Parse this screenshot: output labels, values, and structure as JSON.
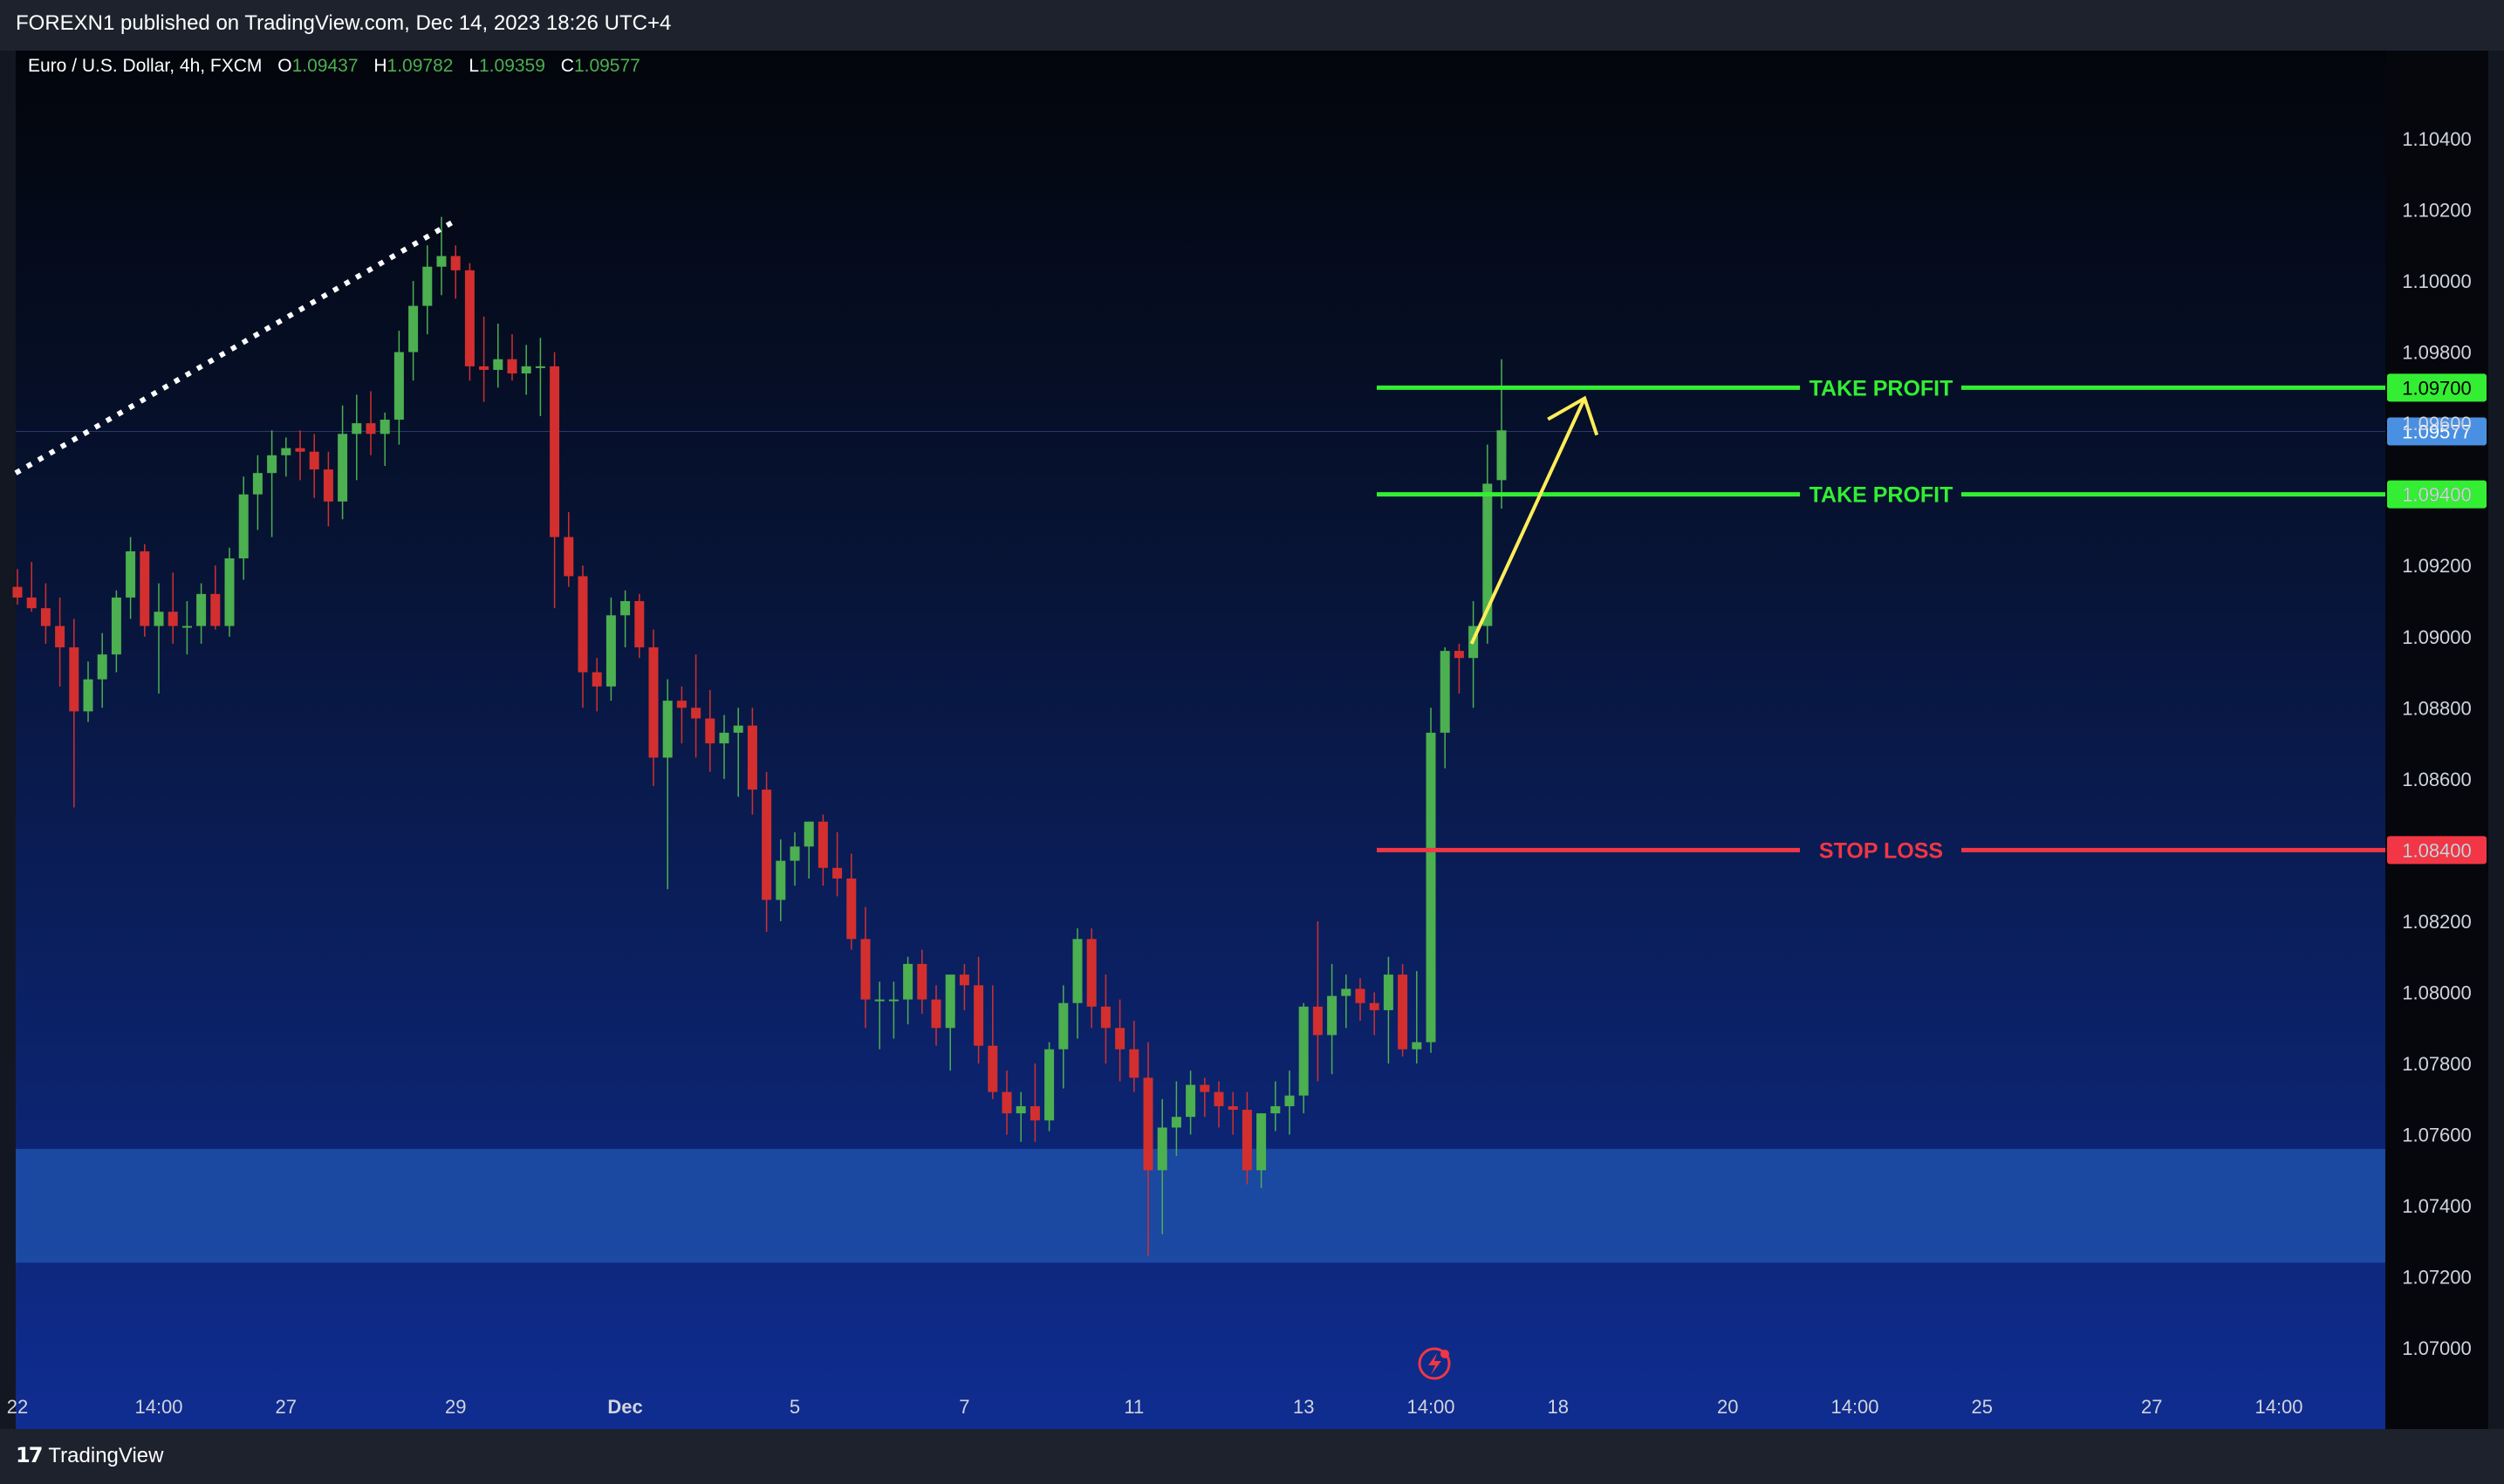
{
  "header": {
    "published": "FOREXN1 published on TradingView.com, Dec 14, 2023 18:26 UTC+4"
  },
  "legend": {
    "symbol": "Euro / U.S. Dollar, 4h, FXCM",
    "o_label": "O",
    "open": "1.09437",
    "h_label": "H",
    "high": "1.09782",
    "l_label": "L",
    "low": "1.09359",
    "c_label": "C",
    "close": "1.09577"
  },
  "footer": {
    "brand": "TradingView",
    "logo_glyph": "17"
  },
  "colors": {
    "up": "#4caf50",
    "down": "#d32f2f",
    "take_profit": "#33ee33",
    "stop_loss": "#f23645",
    "last_price": "#4a90e2",
    "arrow": "#ffee58",
    "zone": "#1e4fa8"
  },
  "chart_data": {
    "type": "candlestick",
    "symbol": "EURUSD",
    "timeframe": "4h",
    "ylim": [
      1.069,
      1.1052
    ],
    "y_ticks": [
      "1.10400",
      "1.10200",
      "1.10000",
      "1.09800",
      "1.09600",
      "1.09400",
      "1.09200",
      "1.09000",
      "1.08800",
      "1.08600",
      "1.08400",
      "1.08200",
      "1.08000",
      "1.07800",
      "1.07600",
      "1.07400",
      "1.07200",
      "1.07000"
    ],
    "x_ticks": [
      {
        "label": "22",
        "slot": 0
      },
      {
        "label": "14:00",
        "slot": 10
      },
      {
        "label": "27",
        "slot": 19
      },
      {
        "label": "29",
        "slot": 31
      },
      {
        "label": "Dec",
        "slot": 43
      },
      {
        "label": "5",
        "slot": 55
      },
      {
        "label": "7",
        "slot": 67
      },
      {
        "label": "11",
        "slot": 79
      },
      {
        "label": "13",
        "slot": 91
      },
      {
        "label": "14:00",
        "slot": 100
      },
      {
        "label": "18",
        "slot": 109
      },
      {
        "label": "20",
        "slot": 121
      },
      {
        "label": "14:00",
        "slot": 130
      },
      {
        "label": "25",
        "slot": 139
      },
      {
        "label": "27",
        "slot": 151
      },
      {
        "label": "14:00",
        "slot": 160
      }
    ],
    "candles": [
      [
        1.0914,
        1.0919,
        1.0909,
        1.0911
      ],
      [
        1.0911,
        1.0921,
        1.0907,
        1.0908
      ],
      [
        1.0908,
        1.0915,
        1.0898,
        1.0903
      ],
      [
        1.0903,
        1.0911,
        1.0886,
        1.0897
      ],
      [
        1.0897,
        1.0905,
        1.0852,
        1.0879
      ],
      [
        1.0879,
        1.0893,
        1.0876,
        1.0888
      ],
      [
        1.0888,
        1.0901,
        1.088,
        1.0895
      ],
      [
        1.0895,
        1.0913,
        1.089,
        1.0911
      ],
      [
        1.0911,
        1.0928,
        1.0905,
        1.0924
      ],
      [
        1.0924,
        1.0926,
        1.09,
        1.0903
      ],
      [
        1.0903,
        1.0915,
        1.0884,
        1.0907
      ],
      [
        1.0907,
        1.0918,
        1.0898,
        1.0903
      ],
      [
        1.0903,
        1.091,
        1.0895,
        1.0903
      ],
      [
        1.0903,
        1.0915,
        1.0898,
        1.0912
      ],
      [
        1.0912,
        1.092,
        1.0902,
        1.0903
      ],
      [
        1.0903,
        1.0925,
        1.09,
        1.0922
      ],
      [
        1.0922,
        1.0945,
        1.0916,
        1.094
      ],
      [
        1.094,
        1.0951,
        1.093,
        1.0946
      ],
      [
        1.0946,
        1.0958,
        1.0928,
        1.0951
      ],
      [
        1.0951,
        1.0956,
        1.0945,
        1.0953
      ],
      [
        1.0953,
        1.0958,
        1.0944,
        1.0952
      ],
      [
        1.0952,
        1.0957,
        1.0939,
        1.0947
      ],
      [
        1.0947,
        1.0952,
        1.0931,
        1.0938
      ],
      [
        1.0938,
        1.0965,
        1.0933,
        1.0957
      ],
      [
        1.0957,
        1.0968,
        1.0944,
        1.096
      ],
      [
        1.096,
        1.0969,
        1.0951,
        1.0957
      ],
      [
        1.0957,
        1.0963,
        1.0948,
        1.0961
      ],
      [
        1.0961,
        1.0986,
        1.0954,
        1.098
      ],
      [
        1.098,
        1.1,
        1.0972,
        1.0993
      ],
      [
        1.0993,
        1.101,
        1.0985,
        1.1004
      ],
      [
        1.1004,
        1.1018,
        1.0996,
        1.1007
      ],
      [
        1.1007,
        1.101,
        1.0995,
        1.1003
      ],
      [
        1.1003,
        1.1005,
        1.0972,
        1.0976
      ],
      [
        1.0976,
        1.099,
        1.0966,
        1.0975
      ],
      [
        1.0975,
        1.0988,
        1.097,
        1.0978
      ],
      [
        1.0978,
        1.0985,
        1.0972,
        1.0974
      ],
      [
        1.0974,
        1.0982,
        1.0968,
        1.0976
      ],
      [
        1.0976,
        1.0984,
        1.0962,
        1.0976
      ],
      [
        1.0976,
        1.098,
        1.0908,
        1.0928
      ],
      [
        1.0928,
        1.0935,
        1.0914,
        1.0917
      ],
      [
        1.0917,
        1.092,
        1.088,
        1.089
      ],
      [
        1.089,
        1.0894,
        1.0879,
        1.0886
      ],
      [
        1.0886,
        1.0911,
        1.0882,
        1.0906
      ],
      [
        1.0906,
        1.0913,
        1.0897,
        1.091
      ],
      [
        1.091,
        1.0912,
        1.0894,
        1.0897
      ],
      [
        1.0897,
        1.0902,
        1.0858,
        1.0866
      ],
      [
        1.0866,
        1.0888,
        1.0829,
        1.0882
      ],
      [
        1.0882,
        1.0886,
        1.087,
        1.088
      ],
      [
        1.088,
        1.0895,
        1.0866,
        1.0877
      ],
      [
        1.0877,
        1.0885,
        1.0862,
        1.087
      ],
      [
        1.087,
        1.0878,
        1.086,
        1.0873
      ],
      [
        1.0873,
        1.088,
        1.0855,
        1.0875
      ],
      [
        1.0875,
        1.088,
        1.085,
        1.0857
      ],
      [
        1.0857,
        1.0862,
        1.0817,
        1.0826
      ],
      [
        1.0826,
        1.0843,
        1.082,
        1.0837
      ],
      [
        1.0837,
        1.0845,
        1.083,
        1.0841
      ],
      [
        1.0841,
        1.0848,
        1.0832,
        1.0848
      ],
      [
        1.0848,
        1.085,
        1.083,
        1.0835
      ],
      [
        1.0835,
        1.0845,
        1.0827,
        1.0832
      ],
      [
        1.0832,
        1.0839,
        1.0812,
        1.0815
      ],
      [
        1.0815,
        1.0824,
        1.079,
        1.0798
      ],
      [
        1.0798,
        1.0803,
        1.0784,
        1.0798
      ],
      [
        1.0798,
        1.0803,
        1.0787,
        1.0798
      ],
      [
        1.0798,
        1.081,
        1.0791,
        1.0808
      ],
      [
        1.0808,
        1.0812,
        1.0794,
        1.0798
      ],
      [
        1.0798,
        1.0802,
        1.0785,
        1.079
      ],
      [
        1.079,
        1.0805,
        1.0778,
        1.0805
      ],
      [
        1.0805,
        1.0808,
        1.0795,
        1.0802
      ],
      [
        1.0802,
        1.081,
        1.078,
        1.0785
      ],
      [
        1.0785,
        1.0802,
        1.077,
        1.0772
      ],
      [
        1.0772,
        1.0778,
        1.076,
        1.0766
      ],
      [
        1.0766,
        1.0772,
        1.0758,
        1.0768
      ],
      [
        1.0768,
        1.078,
        1.0758,
        1.0764
      ],
      [
        1.0764,
        1.0786,
        1.0761,
        1.0784
      ],
      [
        1.0784,
        1.0802,
        1.0773,
        1.0797
      ],
      [
        1.0797,
        1.0818,
        1.0787,
        1.0815
      ],
      [
        1.0815,
        1.0818,
        1.079,
        1.0796
      ],
      [
        1.0796,
        1.0805,
        1.078,
        1.079
      ],
      [
        1.079,
        1.0798,
        1.0775,
        1.0784
      ],
      [
        1.0784,
        1.0792,
        1.0772,
        1.0776
      ],
      [
        1.0776,
        1.0786,
        1.0726,
        1.075
      ],
      [
        1.075,
        1.077,
        1.0732,
        1.0762
      ],
      [
        1.0762,
        1.0775,
        1.0754,
        1.0765
      ],
      [
        1.0765,
        1.0778,
        1.076,
        1.0774
      ],
      [
        1.0774,
        1.0776,
        1.0765,
        1.0772
      ],
      [
        1.0772,
        1.0775,
        1.0762,
        1.0768
      ],
      [
        1.0768,
        1.0772,
        1.076,
        1.0767
      ],
      [
        1.0767,
        1.0772,
        1.0746,
        1.075
      ],
      [
        1.075,
        1.0766,
        1.0745,
        1.0766
      ],
      [
        1.0766,
        1.0775,
        1.0761,
        1.0768
      ],
      [
        1.0768,
        1.0778,
        1.076,
        1.0771
      ],
      [
        1.0771,
        1.0797,
        1.0766,
        1.0796
      ],
      [
        1.0796,
        1.082,
        1.0775,
        1.0788
      ],
      [
        1.0788,
        1.0808,
        1.0777,
        1.0799
      ],
      [
        1.0799,
        1.0805,
        1.079,
        1.0801
      ],
      [
        1.0801,
        1.0804,
        1.0792,
        1.0797
      ],
      [
        1.0797,
        1.08,
        1.0788,
        1.0795
      ],
      [
        1.0795,
        1.081,
        1.078,
        1.0805
      ],
      [
        1.0805,
        1.0808,
        1.0782,
        1.0784
      ],
      [
        1.0784,
        1.0806,
        1.078,
        1.0786
      ],
      [
        1.0786,
        1.088,
        1.0783,
        1.0873
      ],
      [
        1.0873,
        1.0897,
        1.0863,
        1.0896
      ],
      [
        1.0896,
        1.0898,
        1.0884,
        1.0894
      ],
      [
        1.0894,
        1.091,
        1.088,
        1.0903
      ],
      [
        1.0903,
        1.0954,
        1.0898,
        1.0943
      ],
      [
        1.0944,
        1.0978,
        1.0936,
        1.0958
      ]
    ],
    "current_price": "1.09577",
    "levels": [
      {
        "name": "TAKE PROFIT",
        "price": 1.097,
        "label": "1.09700",
        "kind": "tp"
      },
      {
        "name": "TAKE PROFIT",
        "price": 1.094,
        "label": "1.09400",
        "kind": "tp"
      },
      {
        "name": "STOP LOSS",
        "price": 1.084,
        "label": "1.08400",
        "kind": "sl"
      }
    ],
    "demand_zone": [
      1.0724,
      1.0756
    ],
    "trendline": {
      "from": [
        0,
        1.0946
      ],
      "to": [
        31,
        1.1017
      ]
    },
    "projection_arrow": {
      "from": [
        103,
        1.0898
      ],
      "to": [
        111,
        1.0967
      ]
    }
  }
}
